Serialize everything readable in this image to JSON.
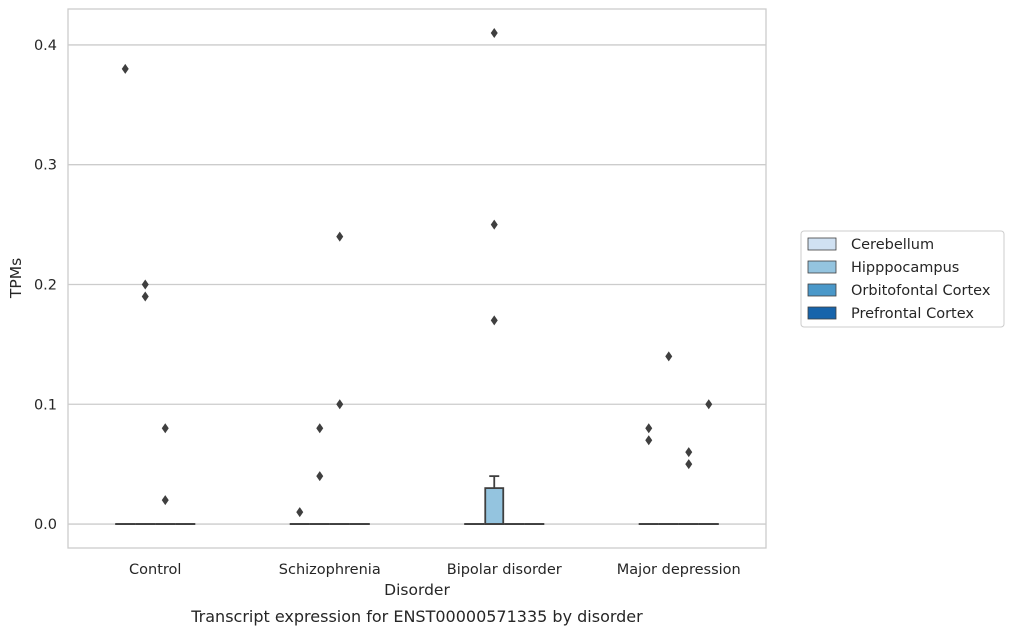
{
  "chart_data": {
    "type": "box",
    "caption": "Transcript expression for ENST00000571335 by disorder",
    "xlabel": "Disorder",
    "ylabel": "TPMs",
    "categories": [
      "Control",
      "Schizophrenia",
      "Bipolar disorder",
      "Major depression"
    ],
    "ylim": [
      -0.02,
      0.43
    ],
    "yticks": [
      0.0,
      0.1,
      0.2,
      0.3,
      0.4
    ],
    "ytick_labels": [
      "0.0",
      "0.1",
      "0.2",
      "0.3",
      "0.4"
    ],
    "grid": "horizontal",
    "legend_position": "right",
    "series": [
      {
        "name": "Cerebellum",
        "color": "#d0e1f2"
      },
      {
        "name": "Hipppocampus",
        "color": "#94c4df"
      },
      {
        "name": "Orbitofontal Cortex",
        "color": "#4a98c9"
      },
      {
        "name": "Prefrontal Cortex",
        "color": "#1764ab"
      }
    ],
    "boxes": [
      {
        "category": 0,
        "series": 0,
        "q1": 0,
        "median": 0,
        "q3": 0,
        "whisker_low": 0,
        "whisker_high": 0,
        "outliers": [
          0.38
        ]
      },
      {
        "category": 0,
        "series": 1,
        "q1": 0,
        "median": 0,
        "q3": 0,
        "whisker_low": 0,
        "whisker_high": 0,
        "outliers": [
          0.2,
          0.19
        ]
      },
      {
        "category": 0,
        "series": 2,
        "q1": 0,
        "median": 0,
        "q3": 0,
        "whisker_low": 0,
        "whisker_high": 0,
        "outliers": [
          0.08,
          0.02
        ]
      },
      {
        "category": 0,
        "series": 3,
        "q1": 0,
        "median": 0,
        "q3": 0,
        "whisker_low": 0,
        "whisker_high": 0,
        "outliers": []
      },
      {
        "category": 1,
        "series": 0,
        "q1": 0,
        "median": 0,
        "q3": 0,
        "whisker_low": 0,
        "whisker_high": 0,
        "outliers": [
          0.01
        ]
      },
      {
        "category": 1,
        "series": 1,
        "q1": 0,
        "median": 0,
        "q3": 0,
        "whisker_low": 0,
        "whisker_high": 0,
        "outliers": [
          0.08,
          0.04
        ]
      },
      {
        "category": 1,
        "series": 2,
        "q1": 0,
        "median": 0,
        "q3": 0,
        "whisker_low": 0,
        "whisker_high": 0,
        "outliers": [
          0.24,
          0.1
        ]
      },
      {
        "category": 1,
        "series": 3,
        "q1": 0,
        "median": 0,
        "q3": 0,
        "whisker_low": 0,
        "whisker_high": 0,
        "outliers": []
      },
      {
        "category": 2,
        "series": 0,
        "q1": 0,
        "median": 0,
        "q3": 0,
        "whisker_low": 0,
        "whisker_high": 0,
        "outliers": []
      },
      {
        "category": 2,
        "series": 1,
        "q1": 0,
        "median": 0,
        "q3": 0.03,
        "whisker_low": 0,
        "whisker_high": 0.04,
        "outliers": [
          0.41,
          0.25,
          0.17
        ]
      },
      {
        "category": 2,
        "series": 2,
        "q1": 0,
        "median": 0,
        "q3": 0,
        "whisker_low": 0,
        "whisker_high": 0,
        "outliers": []
      },
      {
        "category": 2,
        "series": 3,
        "q1": 0,
        "median": 0,
        "q3": 0,
        "whisker_low": 0,
        "whisker_high": 0,
        "outliers": []
      },
      {
        "category": 3,
        "series": 0,
        "q1": 0,
        "median": 0,
        "q3": 0,
        "whisker_low": 0,
        "whisker_high": 0,
        "outliers": [
          0.08,
          0.07
        ]
      },
      {
        "category": 3,
        "series": 1,
        "q1": 0,
        "median": 0,
        "q3": 0,
        "whisker_low": 0,
        "whisker_high": 0,
        "outliers": [
          0.14
        ]
      },
      {
        "category": 3,
        "series": 2,
        "q1": 0,
        "median": 0,
        "q3": 0,
        "whisker_low": 0,
        "whisker_high": 0,
        "outliers": [
          0.06,
          0.05
        ]
      },
      {
        "category": 3,
        "series": 3,
        "q1": 0,
        "median": 0,
        "q3": 0,
        "whisker_low": 0,
        "whisker_high": 0,
        "outliers": [
          0.1
        ]
      }
    ]
  }
}
